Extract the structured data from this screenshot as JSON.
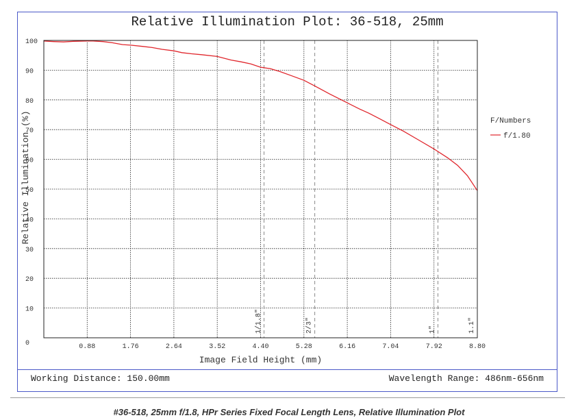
{
  "caption": "#36-518, 25mm f/1.8, HPr Series Fixed Focal Length Lens, Relative Illumination Plot",
  "footer": {
    "working_distance": "Working Distance: 150.00mm",
    "wavelength_range": "Wavelength Range: 486nm-656nm"
  },
  "colors": {
    "frame": "#4a58c8",
    "curve": "#e0252b",
    "grid": "#222222"
  },
  "chart_data": {
    "type": "line",
    "title": "Relative Illumination Plot: 36-518, 25mm",
    "xlabel": "Image Field Height (mm)",
    "ylabel": "Relative Illumination (%)",
    "xlim": [
      0,
      8.8
    ],
    "ylim": [
      0,
      100
    ],
    "x_ticks": [
      "0.88",
      "1.76",
      "2.64",
      "3.52",
      "4.40",
      "5.28",
      "6.16",
      "7.04",
      "7.92",
      "8.80"
    ],
    "y_ticks": [
      "0",
      "10",
      "20",
      "30",
      "40",
      "50",
      "60",
      "70",
      "80",
      "90",
      "100"
    ],
    "grid": true,
    "legend": {
      "title": "F/Numbers",
      "position": "right"
    },
    "series": [
      {
        "name": "f/1.80",
        "x": [
          0,
          0.2,
          0.4,
          0.6,
          0.88,
          1.0,
          1.2,
          1.4,
          1.6,
          1.76,
          2.0,
          2.2,
          2.4,
          2.64,
          2.8,
          3.0,
          3.2,
          3.52,
          3.8,
          4.0,
          4.2,
          4.4,
          4.6,
          4.8,
          5.0,
          5.28,
          5.5,
          5.8,
          6.16,
          6.4,
          6.6,
          6.8,
          7.04,
          7.3,
          7.6,
          7.92,
          8.2,
          8.4,
          8.6,
          8.8
        ],
        "y": [
          99.8,
          99.6,
          99.5,
          99.7,
          99.8,
          99.8,
          99.6,
          99.2,
          98.6,
          98.4,
          98.0,
          97.6,
          97.0,
          96.5,
          95.9,
          95.5,
          95.2,
          94.6,
          93.4,
          92.8,
          92.1,
          91.0,
          90.5,
          89.5,
          88.3,
          86.6,
          84.7,
          82.0,
          79.0,
          77.0,
          75.5,
          73.8,
          71.7,
          69.5,
          66.6,
          63.5,
          60.5,
          58.0,
          54.5,
          49.5
        ]
      }
    ],
    "sensor_formats": [
      {
        "label": "1/1.8\"",
        "x": 4.47
      },
      {
        "label": "2/3\"",
        "x": 5.5
      },
      {
        "label": "1\"",
        "x": 8.0
      },
      {
        "label": "1.1\"",
        "x": 8.8
      }
    ]
  }
}
